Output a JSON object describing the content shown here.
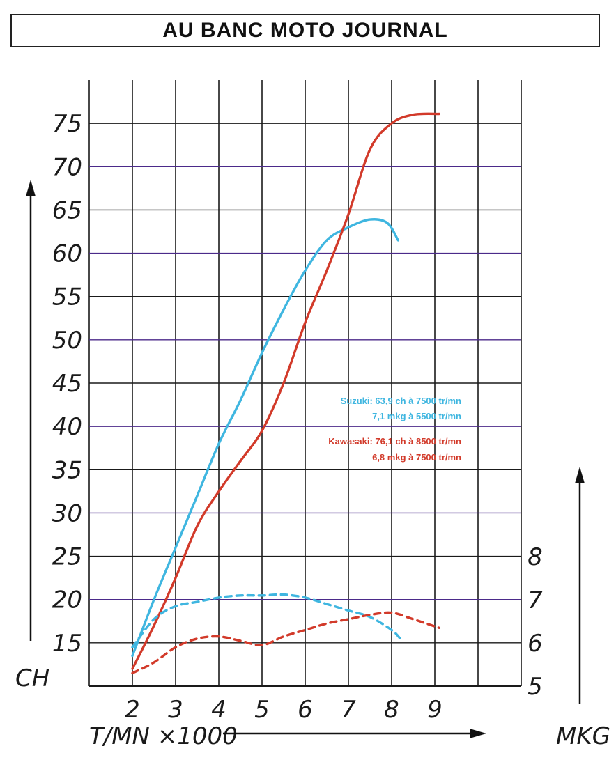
{
  "title": "AU BANC MOTO JOURNAL",
  "colors": {
    "suzuki": "#3fb6e0",
    "kawasaki": "#d23a2a",
    "grid": "#1a1a1a",
    "grid_h": "#4b2a8a"
  },
  "chart_data": {
    "type": "line",
    "xlabel": "T/MN ×1000",
    "ylabel_left": "CH",
    "ylabel_right": "MKG",
    "x_ticks": [
      "2",
      "3",
      "4",
      "5",
      "6",
      "7",
      "8",
      "9"
    ],
    "y_ticks_left": [
      "15",
      "20",
      "25",
      "30",
      "35",
      "40",
      "45",
      "50",
      "55",
      "60",
      "65",
      "70",
      "75"
    ],
    "y_ticks_right": [
      "5",
      "6",
      "7",
      "8"
    ],
    "xlim": [
      1,
      11
    ],
    "ylim_left": [
      10,
      80
    ],
    "ylim_right": [
      5,
      10
    ],
    "series": [
      {
        "name": "Suzuki",
        "axis": "left",
        "style": "solid",
        "x": [
          2,
          2.5,
          3,
          3.5,
          4,
          4.5,
          5,
          5.5,
          6,
          6.5,
          7,
          7.5,
          7.9,
          8.15
        ],
        "values": [
          13.5,
          20,
          26,
          32,
          38,
          43,
          48.5,
          53.5,
          58,
          61.5,
          63,
          63.9,
          63.5,
          61.5
        ]
      },
      {
        "name": "Kawasaki",
        "axis": "left",
        "style": "solid",
        "x": [
          2,
          2.5,
          3,
          3.5,
          4,
          4.5,
          5,
          5.5,
          6,
          6.5,
          7,
          7.5,
          8,
          8.5,
          9.1
        ],
        "values": [
          12,
          17,
          22.5,
          28.5,
          32.5,
          36,
          39.5,
          45,
          52,
          58,
          64.5,
          72,
          75,
          76,
          76.1
        ]
      },
      {
        "name": "Suzuki",
        "axis": "right",
        "style": "dashed",
        "x": [
          2,
          2.5,
          3,
          3.5,
          4,
          4.5,
          5,
          5.5,
          6,
          6.5,
          7,
          7.5,
          8,
          8.2
        ],
        "values": [
          5.9,
          6.55,
          6.85,
          6.95,
          7.05,
          7.1,
          7.1,
          7.12,
          7.05,
          6.9,
          6.75,
          6.6,
          6.3,
          6.1
        ]
      },
      {
        "name": "Kawasaki",
        "axis": "right",
        "style": "dashed",
        "x": [
          2,
          2.5,
          3,
          3.5,
          4,
          4.5,
          5,
          5.5,
          6,
          6.5,
          7,
          7.5,
          8,
          8.5,
          9.1
        ],
        "values": [
          5.3,
          5.55,
          5.9,
          6.1,
          6.15,
          6.05,
          5.95,
          6.15,
          6.3,
          6.45,
          6.55,
          6.65,
          6.7,
          6.55,
          6.35
        ]
      }
    ],
    "annotations": [
      {
        "series": "suzuki",
        "lines": [
          "Suzuki: 63,9 ch à 7500 tr/mn",
          "7,1 mkg à 5500 tr/mn"
        ]
      },
      {
        "series": "kawasaki",
        "lines": [
          "Kawasaki: 76,1 ch à 8500 tr/mn",
          "6,8 mkg à 7500 tr/mn"
        ]
      }
    ],
    "grid": true
  }
}
